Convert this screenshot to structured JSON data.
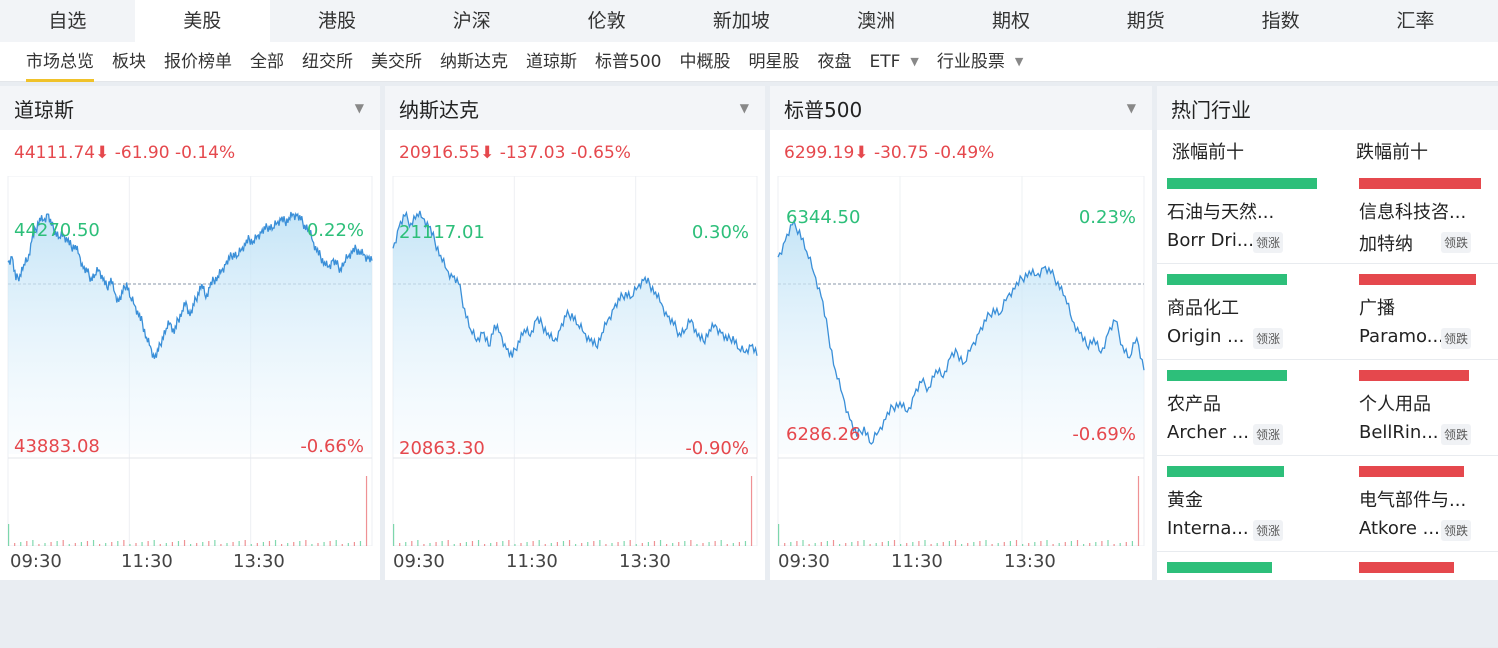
{
  "top_tabs": [
    "自选",
    "美股",
    "港股",
    "沪深",
    "伦敦",
    "新加坡",
    "澳洲",
    "期权",
    "期货",
    "指数",
    "汇率"
  ],
  "active_top_tab": "美股",
  "sub_tabs": [
    "市场总览",
    "板块",
    "报价榜单",
    "全部",
    "纽交所",
    "美交所",
    "纳斯达克",
    "道琼斯",
    "标普500",
    "中概股",
    "明星股",
    "夜盘",
    "ETF",
    "行业股票"
  ],
  "sub_tabs_with_dropdown": [
    "ETF",
    "行业股票"
  ],
  "active_sub_tab": "市场总览",
  "colors": {
    "up": "#2dbf7a",
    "down": "#e5484d",
    "line": "#3a8fd8",
    "fill": "#d7ecf8"
  },
  "indices": [
    {
      "name": "道琼斯",
      "quote": "44111.74⬇ -61.90 -0.14%",
      "high": "44270.50",
      "low": "43883.08",
      "high_pct": "0.22%",
      "low_pct": "-0.66%",
      "series": [
        0.28,
        0.35,
        0.05,
        0.12,
        0.25,
        0.3,
        0.55,
        0.7,
        0.85,
        0.82,
        0.9,
        0.75,
        0.68,
        0.6,
        0.62,
        0.55,
        0.48,
        0.5,
        0.38,
        0.2,
        0.15,
        0.08,
        0.12,
        0.18,
        0.05,
        -0.02,
        0.08,
        -0.05,
        -0.1,
        -0.05,
        0.02,
        -0.08,
        -0.12,
        -0.18,
        -0.22,
        -0.3,
        -0.35,
        -0.42,
        -0.38,
        -0.3,
        -0.25,
        -0.22,
        -0.28,
        -0.2,
        -0.15,
        -0.1,
        -0.18,
        -0.12,
        -0.05,
        0.0,
        -0.08,
        -0.02,
        0.05,
        0.1,
        0.18,
        0.25,
        0.32,
        0.4,
        0.36,
        0.44,
        0.5,
        0.58,
        0.55,
        0.62,
        0.66,
        0.7,
        0.75,
        0.72,
        0.78,
        0.82,
        0.8,
        0.85,
        0.9,
        0.88,
        0.82,
        0.76,
        0.7,
        0.55,
        0.42,
        0.35,
        0.28,
        0.22,
        0.3,
        0.25,
        0.2,
        0.28,
        0.35,
        0.4,
        0.45,
        0.42,
        0.38,
        0.33,
        0.3
      ],
      "xticks": [
        "09:30",
        "11:30",
        "13:30"
      ]
    },
    {
      "name": "纳斯达克",
      "quote": "20916.55⬇ -137.03 -0.65%",
      "high": "21117.01",
      "low": "20863.30",
      "high_pct": "0.30%",
      "low_pct": "-0.90%",
      "series": [
        0.5,
        0.8,
        0.95,
        0.85,
        0.98,
        0.92,
        0.8,
        0.6,
        0.4,
        0.2,
        0.1,
        0.0,
        -0.15,
        -0.28,
        -0.35,
        -0.3,
        -0.38,
        -0.25,
        -0.3,
        -0.4,
        -0.45,
        -0.35,
        -0.28,
        -0.32,
        -0.22,
        -0.25,
        -0.3,
        -0.35,
        -0.28,
        -0.2,
        -0.18,
        -0.25,
        -0.3,
        -0.35,
        -0.38,
        -0.3,
        -0.22,
        -0.15,
        -0.1,
        -0.05,
        -0.08,
        -0.02,
        0.05,
        0.0,
        -0.05,
        -0.12,
        -0.2,
        -0.25,
        -0.3,
        -0.28,
        -0.22,
        -0.32,
        -0.35,
        -0.28,
        -0.25,
        -0.3,
        -0.35,
        -0.32,
        -0.4,
        -0.42,
        -0.38,
        -0.44
      ],
      "xticks": [
        "09:30",
        "11:30",
        "13:30"
      ]
    },
    {
      "name": "标普500",
      "quote": "6299.19⬇ -30.75 -0.49%",
      "high": "6344.50",
      "low": "6286.26",
      "high_pct": "0.23%",
      "low_pct": "-0.69%",
      "series": [
        0.25,
        0.4,
        0.55,
        0.5,
        0.3,
        0.1,
        -0.05,
        -0.2,
        -0.35,
        -0.45,
        -0.55,
        -0.62,
        -0.58,
        -0.65,
        -0.6,
        -0.55,
        -0.5,
        -0.48,
        -0.52,
        -0.45,
        -0.4,
        -0.42,
        -0.35,
        -0.38,
        -0.3,
        -0.28,
        -0.32,
        -0.25,
        -0.2,
        -0.15,
        -0.1,
        -0.12,
        -0.05,
        -0.02,
        0.05,
        0.12,
        0.08,
        0.15,
        0.1,
        0.02,
        -0.05,
        -0.15,
        -0.2,
        -0.25,
        -0.22,
        -0.28,
        -0.2,
        -0.15,
        -0.25,
        -0.3,
        -0.22,
        -0.35
      ],
      "xticks": [
        "09:30",
        "11:30",
        "13:30"
      ]
    }
  ],
  "industries": {
    "title": "热门行业",
    "gainers_label": "涨幅前十",
    "losers_label": "跌幅前十",
    "lead_up": "领涨",
    "lead_down": "领跌",
    "gainers": [
      {
        "sector": "石油与天然...",
        "stock": "Borr Dri...",
        "strength": 1.0
      },
      {
        "sector": "商品化工",
        "stock": "Origin ...",
        "strength": 0.8
      },
      {
        "sector": "农产品",
        "stock": "Archer ...",
        "strength": 0.8
      },
      {
        "sector": "黄金",
        "stock": "Interna...",
        "strength": 0.78
      },
      {
        "sector": "",
        "stock": "",
        "strength": 0.7
      }
    ],
    "losers": [
      {
        "sector": "信息科技咨...",
        "stock": "加特纳",
        "strength": 1.0
      },
      {
        "sector": "广播",
        "stock": "Paramo...",
        "strength": 0.96
      },
      {
        "sector": "个人用品",
        "stock": "BellRin...",
        "strength": 0.9
      },
      {
        "sector": "电气部件与...",
        "stock": "Atkore ...",
        "strength": 0.86
      },
      {
        "sector": "",
        "stock": "",
        "strength": 0.78
      }
    ]
  }
}
